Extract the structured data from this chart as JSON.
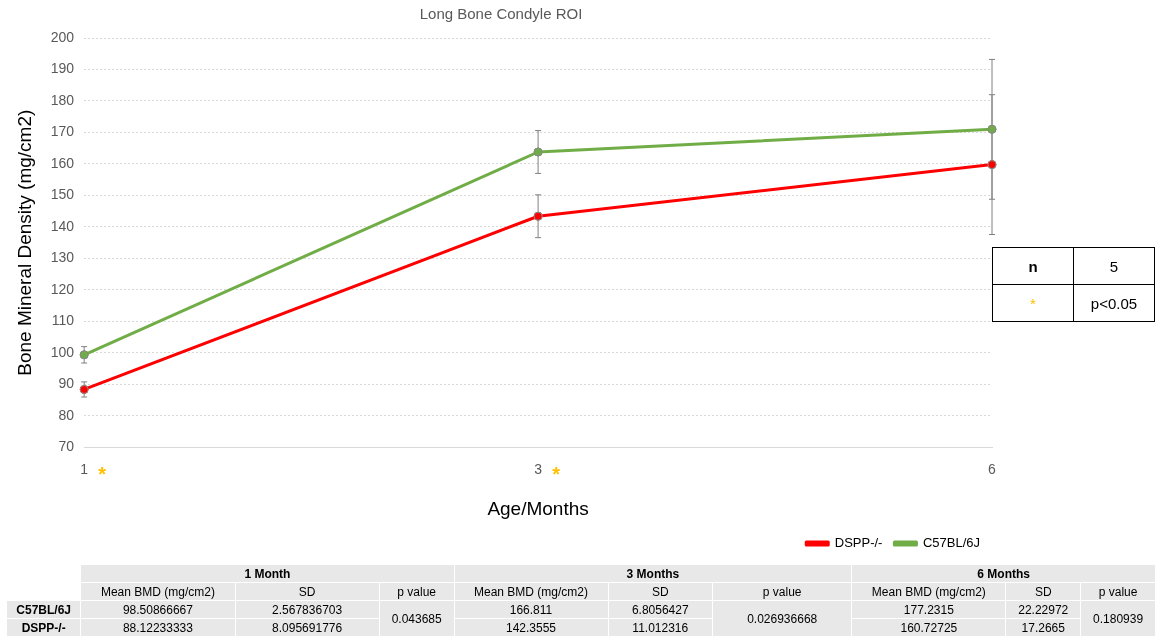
{
  "chart_data": {
    "type": "line",
    "title": "Long Bone Condyle ROI",
    "xlabel": "Age/Months",
    "ylabel": "Bone Mineral Density (mg/cm2)",
    "categories": [
      "1",
      "3",
      "6"
    ],
    "series": [
      {
        "name": "DSPP-/-",
        "color": "#ff0000",
        "values": [
          88.4,
          143.4,
          159.8
        ],
        "errors": [
          2.4,
          6.8,
          22.2
        ]
      },
      {
        "name": "C57BL/6J",
        "color": "#70ad47",
        "values": [
          99.4,
          163.8,
          171.0
        ],
        "errors": [
          2.6,
          6.8,
          22.2
        ]
      }
    ],
    "ylim": [
      70,
      200
    ],
    "yticks": [
      70,
      80,
      90,
      100,
      110,
      120,
      130,
      140,
      150,
      160,
      170,
      180,
      190,
      200
    ],
    "grid": "y",
    "legend": "bottom right",
    "marker": "circle",
    "line_style": "solid",
    "annotations": [
      "*",
      "*",
      "n",
      "5",
      "*",
      "p<0.05",
      "1 Month",
      "3 Months",
      "6 Months",
      "Mean BMD (mg/cm2)",
      "SD",
      "p value",
      "Mean BMD (mg/cm2)",
      "SD",
      "p value",
      "Mean BMD (mg/cm2)",
      "SD",
      "p value",
      "C57BL/6J",
      "98.50866667",
      "2.567836703",
      "0.043685",
      "166.811",
      "6.8056427",
      "0.026936668",
      "177.2315",
      "22.22972",
      "0.180939",
      "DSPP-/-",
      "88.12233333",
      "8.095691776",
      "142.3555",
      "11.012316",
      "160.72725",
      "17.2665"
    ]
  }
}
